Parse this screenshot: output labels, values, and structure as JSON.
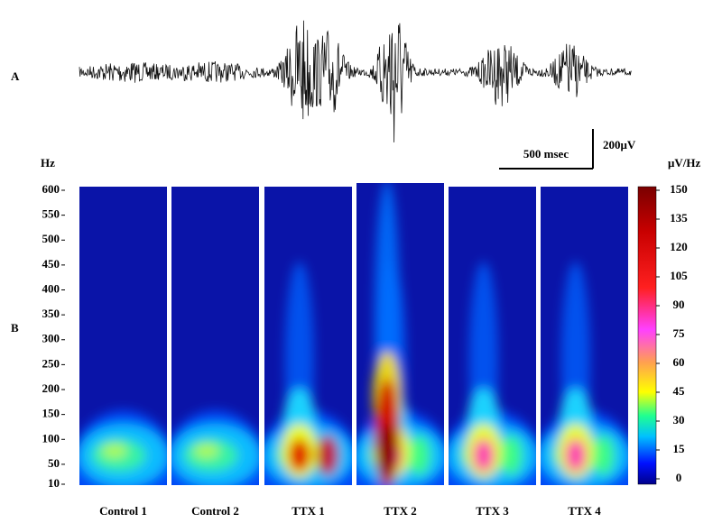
{
  "chart_data": {
    "type": "spectrogram",
    "panel_labels": [
      "A",
      "B"
    ],
    "scale_bar": {
      "time": "500 msec",
      "amplitude": "200μV"
    },
    "y_label": "Hz",
    "ylim": [
      10,
      600
    ],
    "yticks": [
      10,
      50,
      100,
      150,
      200,
      250,
      300,
      350,
      400,
      450,
      500,
      550,
      600
    ],
    "categories": [
      "Control 1",
      "Control 2",
      "TTX 1",
      "TTX 2",
      "TTX 3",
      "TTX 4"
    ],
    "colorbar": {
      "label": "μV/Hz",
      "lim": [
        0,
        150
      ],
      "ticks": [
        0,
        15,
        30,
        45,
        60,
        75,
        90,
        105,
        120,
        135,
        150
      ]
    }
  }
}
